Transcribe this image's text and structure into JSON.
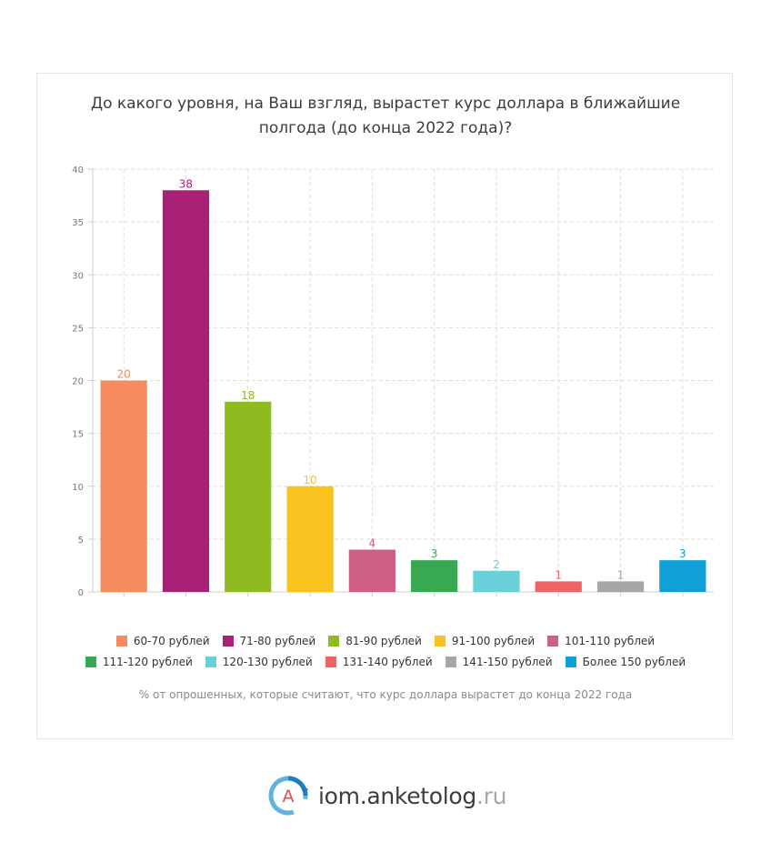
{
  "title_lines": [
    "До какого уровня, на Ваш взгляд, вырастет курс доллара в ближайшие",
    "полгода (до конца 2022 года)?"
  ],
  "chart_data": {
    "type": "bar",
    "title": "До какого уровня, на Ваш взгляд, вырастет курс доллара в ближайшие полгода (до конца 2022 года)?",
    "categories": [
      "60-70 рублей",
      "71-80 рублей",
      "81-90 рублей",
      "91-100 рублей",
      "101-110 рублей",
      "111-120 рублей",
      "120-130 рублей",
      "131-140 рублей",
      "141-150 рублей",
      "Более 150 рублей"
    ],
    "values": [
      20,
      38,
      18,
      10,
      4,
      3,
      2,
      1,
      1,
      3
    ],
    "colors": [
      "#f58b5e",
      "#a82177",
      "#8fba22",
      "#f9c21e",
      "#cf5e85",
      "#38a852",
      "#69d0d8",
      "#ee6464",
      "#a6a6a6",
      "#109fd6"
    ],
    "ylim": [
      0,
      40
    ],
    "yticks": [
      0,
      5,
      10,
      15,
      20,
      25,
      30,
      35,
      40
    ],
    "xlabel": "% от опрошенных, которые считают, что курс доллара вырастет до конца 2022 года",
    "ylabel": "",
    "grid": true,
    "legend_position": "bottom"
  },
  "legend_rows": [
    [
      "60-70 рублей",
      "71-80 рублей",
      "81-90 рублей",
      "91-100 рублей",
      "101-110 рублей"
    ],
    [
      "111-120 рублей",
      "120-130 рублей",
      "131-140 рублей",
      "141-150 рублей",
      "Более 150 рублей"
    ]
  ],
  "note": "% от опрошенных, которые считают, что курс доллара вырастет до конца 2022 года",
  "brand": {
    "logo_letter": "A",
    "name": "iom.anketolog",
    "tld": ".ru",
    "logo_colors": [
      "#1f7fb8",
      "#5fb3dd",
      "#e84a4a"
    ]
  }
}
